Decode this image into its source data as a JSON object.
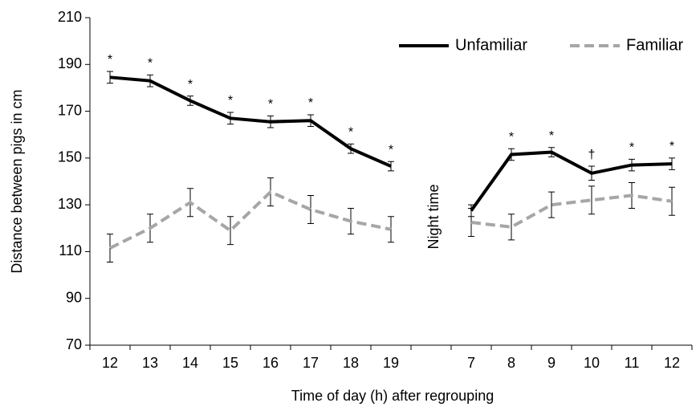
{
  "chart_data": {
    "type": "line",
    "x_label": "Time of day (h) after regrouping",
    "y_label": "Distance between pigs in cm",
    "annotation": "Night time",
    "categories": [
      "12",
      "13",
      "14",
      "15",
      "16",
      "17",
      "18",
      "19",
      null,
      "7",
      "8",
      "9",
      "10",
      "11",
      "12"
    ],
    "series": [
      {
        "name": "Unfamiliar",
        "color": "#000000",
        "dash": false,
        "values": [
          184.5,
          183,
          174.5,
          167,
          165.5,
          166,
          154,
          146.5,
          null,
          127.5,
          151.5,
          152.5,
          143.5,
          147,
          147.5
        ],
        "errors": [
          2.5,
          2.5,
          2,
          2.5,
          2.5,
          2.5,
          2,
          2,
          null,
          2.5,
          2.5,
          2,
          3,
          2.5,
          2.5
        ],
        "markers": [
          "*",
          "*",
          "*",
          "*",
          "*",
          "*",
          "*",
          "*",
          null,
          null,
          "*",
          "*",
          "†",
          "*",
          "*"
        ]
      },
      {
        "name": "Familiar",
        "color": "#a6a6a6",
        "dash": true,
        "values": [
          111.5,
          120,
          131,
          119,
          135.5,
          128,
          123,
          119.5,
          null,
          122.5,
          120.5,
          130,
          132,
          134,
          131.5
        ],
        "errors": [
          6,
          6,
          6,
          6,
          6,
          6,
          5.5,
          5.5,
          null,
          6,
          5.5,
          5.5,
          6,
          5.5,
          6
        ]
      }
    ],
    "ylim": [
      70,
      210
    ],
    "yticks": [
      70,
      90,
      110,
      130,
      150,
      170,
      190,
      210
    ],
    "legend": "top-right"
  }
}
